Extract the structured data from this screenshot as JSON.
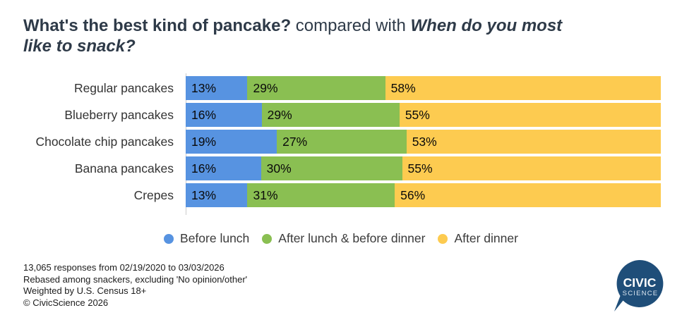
{
  "title": {
    "question1": "What's the best kind of pancake?",
    "connector": " compared with ",
    "question2": "When do you most like to snack?"
  },
  "chart_data": {
    "type": "bar",
    "orientation": "horizontal",
    "stacked": true,
    "categories": [
      "Regular pancakes",
      "Blueberry pancakes",
      "Chocolate chip pancakes",
      "Banana pancakes",
      "Crepes"
    ],
    "series": [
      {
        "name": "Before lunch",
        "color": "#5793e1",
        "values": [
          13,
          16,
          19,
          16,
          13
        ]
      },
      {
        "name": "After lunch & before dinner",
        "color": "#8abf52",
        "values": [
          29,
          29,
          27,
          30,
          31
        ]
      },
      {
        "name": "After dinner",
        "color": "#fdcb50",
        "values": [
          58,
          55,
          53,
          55,
          56
        ]
      }
    ],
    "value_format": "percent",
    "value_suffix": "%",
    "xlim": [
      0,
      100
    ],
    "grid": false,
    "legend_position": "bottom"
  },
  "legend": [
    {
      "label": "Before lunch",
      "color": "#5793e1"
    },
    {
      "label": "After lunch & before dinner",
      "color": "#8abf52"
    },
    {
      "label": "After dinner",
      "color": "#fdcb50"
    }
  ],
  "footer": {
    "lines": [
      "13,065 responses from 02/19/2020 to 03/03/2026",
      "Rebased among snackers, excluding 'No opinion/other'",
      "Weighted by U.S. Census 18+",
      "© CivicScience 2026"
    ]
  },
  "logo": {
    "line1": "CIVIC",
    "line2": "SCIENCE",
    "color": "#1f4e79"
  }
}
